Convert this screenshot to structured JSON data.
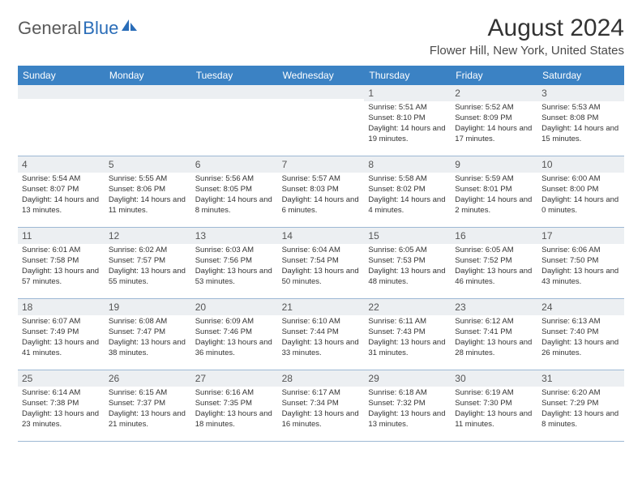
{
  "logo": {
    "text1": "General",
    "text2": "Blue"
  },
  "title": "August 2024",
  "location": "Flower Hill, New York, United States",
  "day_headers": [
    "Sunday",
    "Monday",
    "Tuesday",
    "Wednesday",
    "Thursday",
    "Friday",
    "Saturday"
  ],
  "colors": {
    "header_bg": "#3b82c4",
    "header_text": "#ffffff",
    "border": "#9db8d4",
    "shaded_bg": "#eceff2",
    "text": "#333333",
    "logo_gray": "#5a5a5a",
    "logo_blue": "#2a6db8"
  },
  "weeks": [
    [
      {
        "empty": true
      },
      {
        "empty": true
      },
      {
        "empty": true
      },
      {
        "empty": true
      },
      {
        "day": "1",
        "sunrise": "Sunrise: 5:51 AM",
        "sunset": "Sunset: 8:10 PM",
        "daylight": "Daylight: 14 hours and 19 minutes."
      },
      {
        "day": "2",
        "sunrise": "Sunrise: 5:52 AM",
        "sunset": "Sunset: 8:09 PM",
        "daylight": "Daylight: 14 hours and 17 minutes."
      },
      {
        "day": "3",
        "sunrise": "Sunrise: 5:53 AM",
        "sunset": "Sunset: 8:08 PM",
        "daylight": "Daylight: 14 hours and 15 minutes."
      }
    ],
    [
      {
        "day": "4",
        "sunrise": "Sunrise: 5:54 AM",
        "sunset": "Sunset: 8:07 PM",
        "daylight": "Daylight: 14 hours and 13 minutes."
      },
      {
        "day": "5",
        "sunrise": "Sunrise: 5:55 AM",
        "sunset": "Sunset: 8:06 PM",
        "daylight": "Daylight: 14 hours and 11 minutes."
      },
      {
        "day": "6",
        "sunrise": "Sunrise: 5:56 AM",
        "sunset": "Sunset: 8:05 PM",
        "daylight": "Daylight: 14 hours and 8 minutes."
      },
      {
        "day": "7",
        "sunrise": "Sunrise: 5:57 AM",
        "sunset": "Sunset: 8:03 PM",
        "daylight": "Daylight: 14 hours and 6 minutes."
      },
      {
        "day": "8",
        "sunrise": "Sunrise: 5:58 AM",
        "sunset": "Sunset: 8:02 PM",
        "daylight": "Daylight: 14 hours and 4 minutes."
      },
      {
        "day": "9",
        "sunrise": "Sunrise: 5:59 AM",
        "sunset": "Sunset: 8:01 PM",
        "daylight": "Daylight: 14 hours and 2 minutes."
      },
      {
        "day": "10",
        "sunrise": "Sunrise: 6:00 AM",
        "sunset": "Sunset: 8:00 PM",
        "daylight": "Daylight: 14 hours and 0 minutes."
      }
    ],
    [
      {
        "day": "11",
        "sunrise": "Sunrise: 6:01 AM",
        "sunset": "Sunset: 7:58 PM",
        "daylight": "Daylight: 13 hours and 57 minutes."
      },
      {
        "day": "12",
        "sunrise": "Sunrise: 6:02 AM",
        "sunset": "Sunset: 7:57 PM",
        "daylight": "Daylight: 13 hours and 55 minutes."
      },
      {
        "day": "13",
        "sunrise": "Sunrise: 6:03 AM",
        "sunset": "Sunset: 7:56 PM",
        "daylight": "Daylight: 13 hours and 53 minutes."
      },
      {
        "day": "14",
        "sunrise": "Sunrise: 6:04 AM",
        "sunset": "Sunset: 7:54 PM",
        "daylight": "Daylight: 13 hours and 50 minutes."
      },
      {
        "day": "15",
        "sunrise": "Sunrise: 6:05 AM",
        "sunset": "Sunset: 7:53 PM",
        "daylight": "Daylight: 13 hours and 48 minutes."
      },
      {
        "day": "16",
        "sunrise": "Sunrise: 6:05 AM",
        "sunset": "Sunset: 7:52 PM",
        "daylight": "Daylight: 13 hours and 46 minutes."
      },
      {
        "day": "17",
        "sunrise": "Sunrise: 6:06 AM",
        "sunset": "Sunset: 7:50 PM",
        "daylight": "Daylight: 13 hours and 43 minutes."
      }
    ],
    [
      {
        "day": "18",
        "sunrise": "Sunrise: 6:07 AM",
        "sunset": "Sunset: 7:49 PM",
        "daylight": "Daylight: 13 hours and 41 minutes."
      },
      {
        "day": "19",
        "sunrise": "Sunrise: 6:08 AM",
        "sunset": "Sunset: 7:47 PM",
        "daylight": "Daylight: 13 hours and 38 minutes."
      },
      {
        "day": "20",
        "sunrise": "Sunrise: 6:09 AM",
        "sunset": "Sunset: 7:46 PM",
        "daylight": "Daylight: 13 hours and 36 minutes."
      },
      {
        "day": "21",
        "sunrise": "Sunrise: 6:10 AM",
        "sunset": "Sunset: 7:44 PM",
        "daylight": "Daylight: 13 hours and 33 minutes."
      },
      {
        "day": "22",
        "sunrise": "Sunrise: 6:11 AM",
        "sunset": "Sunset: 7:43 PM",
        "daylight": "Daylight: 13 hours and 31 minutes."
      },
      {
        "day": "23",
        "sunrise": "Sunrise: 6:12 AM",
        "sunset": "Sunset: 7:41 PM",
        "daylight": "Daylight: 13 hours and 28 minutes."
      },
      {
        "day": "24",
        "sunrise": "Sunrise: 6:13 AM",
        "sunset": "Sunset: 7:40 PM",
        "daylight": "Daylight: 13 hours and 26 minutes."
      }
    ],
    [
      {
        "day": "25",
        "sunrise": "Sunrise: 6:14 AM",
        "sunset": "Sunset: 7:38 PM",
        "daylight": "Daylight: 13 hours and 23 minutes."
      },
      {
        "day": "26",
        "sunrise": "Sunrise: 6:15 AM",
        "sunset": "Sunset: 7:37 PM",
        "daylight": "Daylight: 13 hours and 21 minutes."
      },
      {
        "day": "27",
        "sunrise": "Sunrise: 6:16 AM",
        "sunset": "Sunset: 7:35 PM",
        "daylight": "Daylight: 13 hours and 18 minutes."
      },
      {
        "day": "28",
        "sunrise": "Sunrise: 6:17 AM",
        "sunset": "Sunset: 7:34 PM",
        "daylight": "Daylight: 13 hours and 16 minutes."
      },
      {
        "day": "29",
        "sunrise": "Sunrise: 6:18 AM",
        "sunset": "Sunset: 7:32 PM",
        "daylight": "Daylight: 13 hours and 13 minutes."
      },
      {
        "day": "30",
        "sunrise": "Sunrise: 6:19 AM",
        "sunset": "Sunset: 7:30 PM",
        "daylight": "Daylight: 13 hours and 11 minutes."
      },
      {
        "day": "31",
        "sunrise": "Sunrise: 6:20 AM",
        "sunset": "Sunset: 7:29 PM",
        "daylight": "Daylight: 13 hours and 8 minutes."
      }
    ]
  ]
}
